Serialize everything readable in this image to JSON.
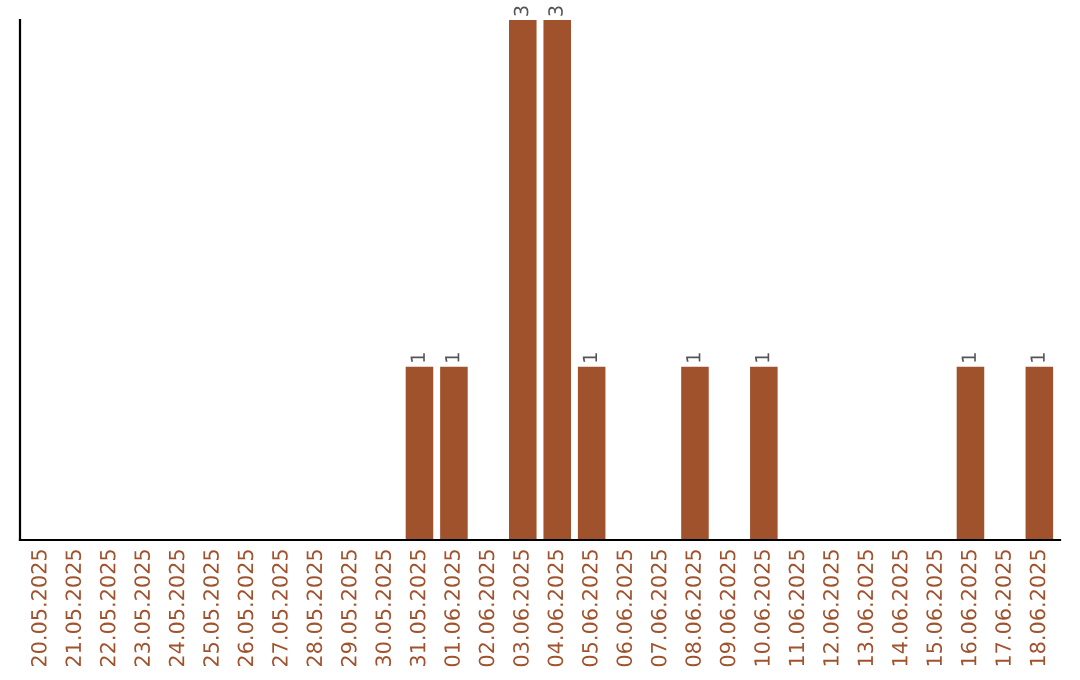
{
  "chart_data": {
    "type": "bar",
    "categories": [
      "20.05.2025",
      "21.05.2025",
      "22.05.2025",
      "23.05.2025",
      "24.05.2025",
      "25.05.2025",
      "26.05.2025",
      "27.05.2025",
      "28.05.2025",
      "29.05.2025",
      "30.05.2025",
      "31.05.2025",
      "01.06.2025",
      "02.06.2025",
      "03.06.2025",
      "04.06.2025",
      "05.06.2025",
      "06.06.2025",
      "07.06.2025",
      "08.06.2025",
      "09.06.2025",
      "10.06.2025",
      "11.06.2025",
      "12.06.2025",
      "13.06.2025",
      "14.06.2025",
      "15.06.2025",
      "16.06.2025",
      "17.06.2025",
      "18.06.2025"
    ],
    "values": [
      0,
      0,
      0,
      0,
      0,
      0,
      0,
      0,
      0,
      0,
      0,
      1,
      1,
      0,
      3,
      3,
      1,
      0,
      0,
      1,
      0,
      1,
      0,
      0,
      0,
      0,
      0,
      1,
      0,
      1
    ],
    "value_labels": [
      null,
      null,
      null,
      null,
      null,
      null,
      null,
      null,
      null,
      null,
      null,
      "1",
      "1",
      null,
      "3",
      "3",
      "1",
      null,
      null,
      "1",
      null,
      "1",
      null,
      null,
      null,
      null,
      null,
      "1",
      null,
      "1"
    ],
    "color": "#a0522d",
    "ylim": [
      0,
      3
    ],
    "tick_labels": "x",
    "grid": false
  }
}
